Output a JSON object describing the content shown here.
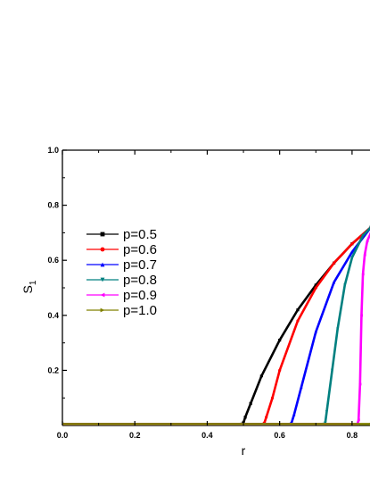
{
  "chart_data": {
    "type": "line",
    "title": "",
    "xlabel": "r",
    "ylabel": "S",
    "ylabel_subscript": "1",
    "xlim": [
      0.0,
      0.852
    ],
    "ylim": [
      0.0,
      1.0
    ],
    "xticks": [
      "0.0",
      "0.2",
      "0.4",
      "0.6",
      "0.8"
    ],
    "yticks": [
      "0.2",
      "0.4",
      "0.6",
      "0.8",
      "1.0"
    ],
    "legend_position": "left",
    "series": [
      {
        "name": "p=0.5",
        "color": "#000000",
        "marker": "square",
        "x": [
          0.0,
          0.495,
          0.5,
          0.505,
          0.52,
          0.55,
          0.6,
          0.65,
          0.7,
          0.75,
          0.8,
          0.852
        ],
        "y": [
          0.005,
          0.005,
          0.01,
          0.03,
          0.08,
          0.18,
          0.31,
          0.42,
          0.51,
          0.59,
          0.66,
          0.72
        ]
      },
      {
        "name": "p=0.6",
        "color": "#ff0000",
        "marker": "circle",
        "x": [
          0.0,
          0.553,
          0.558,
          0.563,
          0.58,
          0.6,
          0.65,
          0.7,
          0.75,
          0.8,
          0.852
        ],
        "y": [
          0.005,
          0.005,
          0.01,
          0.03,
          0.1,
          0.2,
          0.38,
          0.5,
          0.59,
          0.66,
          0.72
        ]
      },
      {
        "name": "p=0.7",
        "color": "#0000ff",
        "marker": "triangle-up",
        "x": [
          0.0,
          0.628,
          0.633,
          0.64,
          0.66,
          0.7,
          0.75,
          0.8,
          0.852
        ],
        "y": [
          0.005,
          0.005,
          0.01,
          0.04,
          0.14,
          0.34,
          0.52,
          0.63,
          0.72
        ]
      },
      {
        "name": "p=0.8",
        "color": "#008080",
        "marker": "triangle-down",
        "x": [
          0.0,
          0.722,
          0.726,
          0.73,
          0.745,
          0.76,
          0.78,
          0.8,
          0.83,
          0.852
        ],
        "y": [
          0.005,
          0.005,
          0.01,
          0.05,
          0.2,
          0.35,
          0.51,
          0.61,
          0.69,
          0.72
        ]
      },
      {
        "name": "p=0.9",
        "color": "#ff00ff",
        "marker": "triangle-left",
        "x": [
          0.0,
          0.815,
          0.818,
          0.822,
          0.826,
          0.83,
          0.835,
          0.842,
          0.852
        ],
        "y": [
          0.005,
          0.005,
          0.02,
          0.15,
          0.4,
          0.55,
          0.62,
          0.67,
          0.7
        ]
      },
      {
        "name": "p=1.0",
        "color": "#808000",
        "marker": "triangle-right",
        "x": [
          0.0,
          0.852
        ],
        "y": [
          0.005,
          0.005
        ]
      }
    ]
  }
}
